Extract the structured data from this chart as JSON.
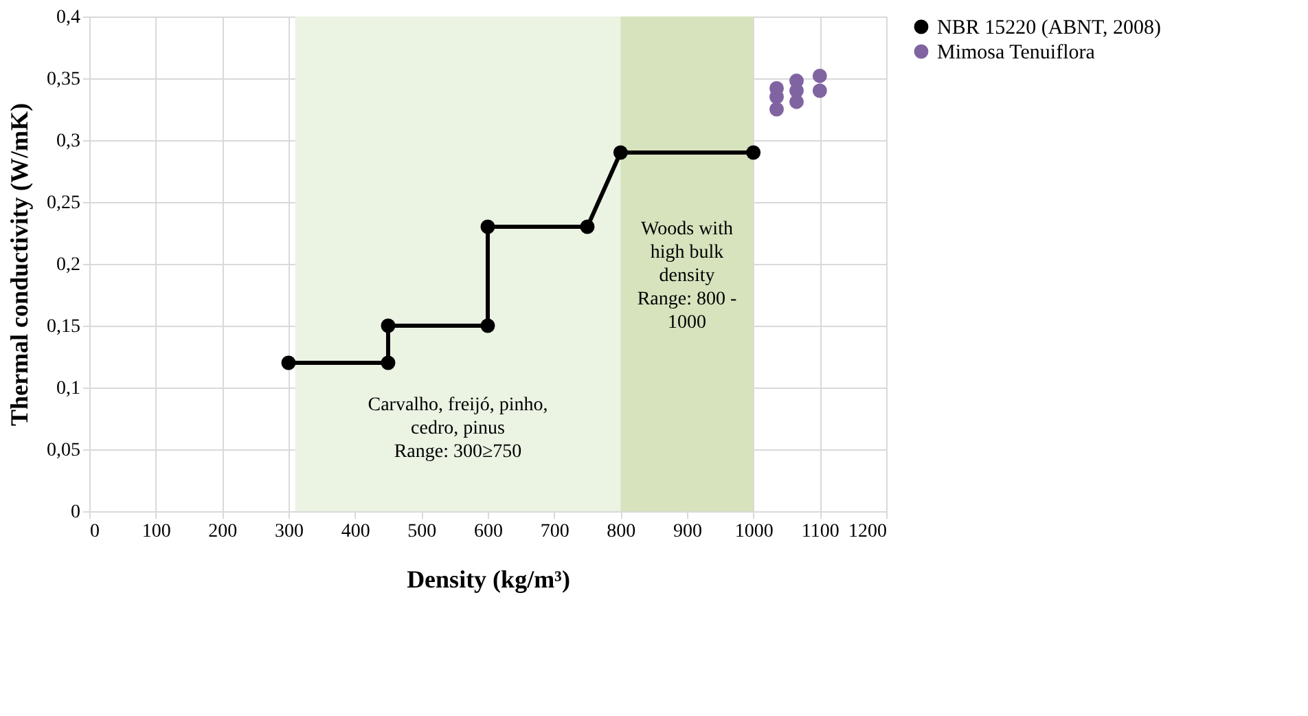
{
  "chart_data": {
    "type": "line",
    "xlabel": "Density (kg/m³)",
    "ylabel": "Thermal conductivity (W/mK)",
    "xlim": [
      0,
      1200
    ],
    "xticks": [
      0,
      100,
      200,
      300,
      400,
      500,
      600,
      700,
      800,
      900,
      1000,
      1100,
      1200
    ],
    "ylim": [
      0,
      0.4
    ],
    "yticks": [
      {
        "value": 0,
        "label": "0"
      },
      {
        "value": 0.05,
        "label": "0,05"
      },
      {
        "value": 0.1,
        "label": "0,1"
      },
      {
        "value": 0.15,
        "label": "0,15"
      },
      {
        "value": 0.2,
        "label": "0,2"
      },
      {
        "value": 0.25,
        "label": "0,25"
      },
      {
        "value": 0.3,
        "label": "0,3"
      },
      {
        "value": 0.35,
        "label": "0,35"
      },
      {
        "value": 0.4,
        "label": "0,4"
      }
    ],
    "grid": true,
    "legend": "right",
    "series": [
      {
        "name": "NBR 15220 (ABNT, 2008)",
        "type": "line",
        "marker": "circle",
        "color": "#000000",
        "x": [
          300,
          450,
          450,
          600,
          600,
          750,
          800,
          1000
        ],
        "values": [
          0.12,
          0.12,
          0.15,
          0.15,
          0.23,
          0.23,
          0.29,
          0.29
        ]
      },
      {
        "name": "Mimosa Tenuiflora",
        "type": "scatter",
        "marker": "circle",
        "color": "#8064a2",
        "x": [
          1035,
          1035,
          1035,
          1065,
          1065,
          1065,
          1100,
          1100
        ],
        "values": [
          0.342,
          0.335,
          0.325,
          0.348,
          0.34,
          0.331,
          0.352,
          0.34
        ]
      }
    ],
    "bands": [
      {
        "axis": "x",
        "from": 310,
        "to": 800,
        "color": "#ebf3e3",
        "label": "Carvalho, freijó, pinho,\ncedro, pinus\nRange: 300≥750"
      },
      {
        "axis": "x",
        "from": 800,
        "to": 1000,
        "color": "#d6e3bd",
        "label": "Woods with\nhigh bulk\ndensity\nRange: 800 -\n1000"
      }
    ]
  }
}
